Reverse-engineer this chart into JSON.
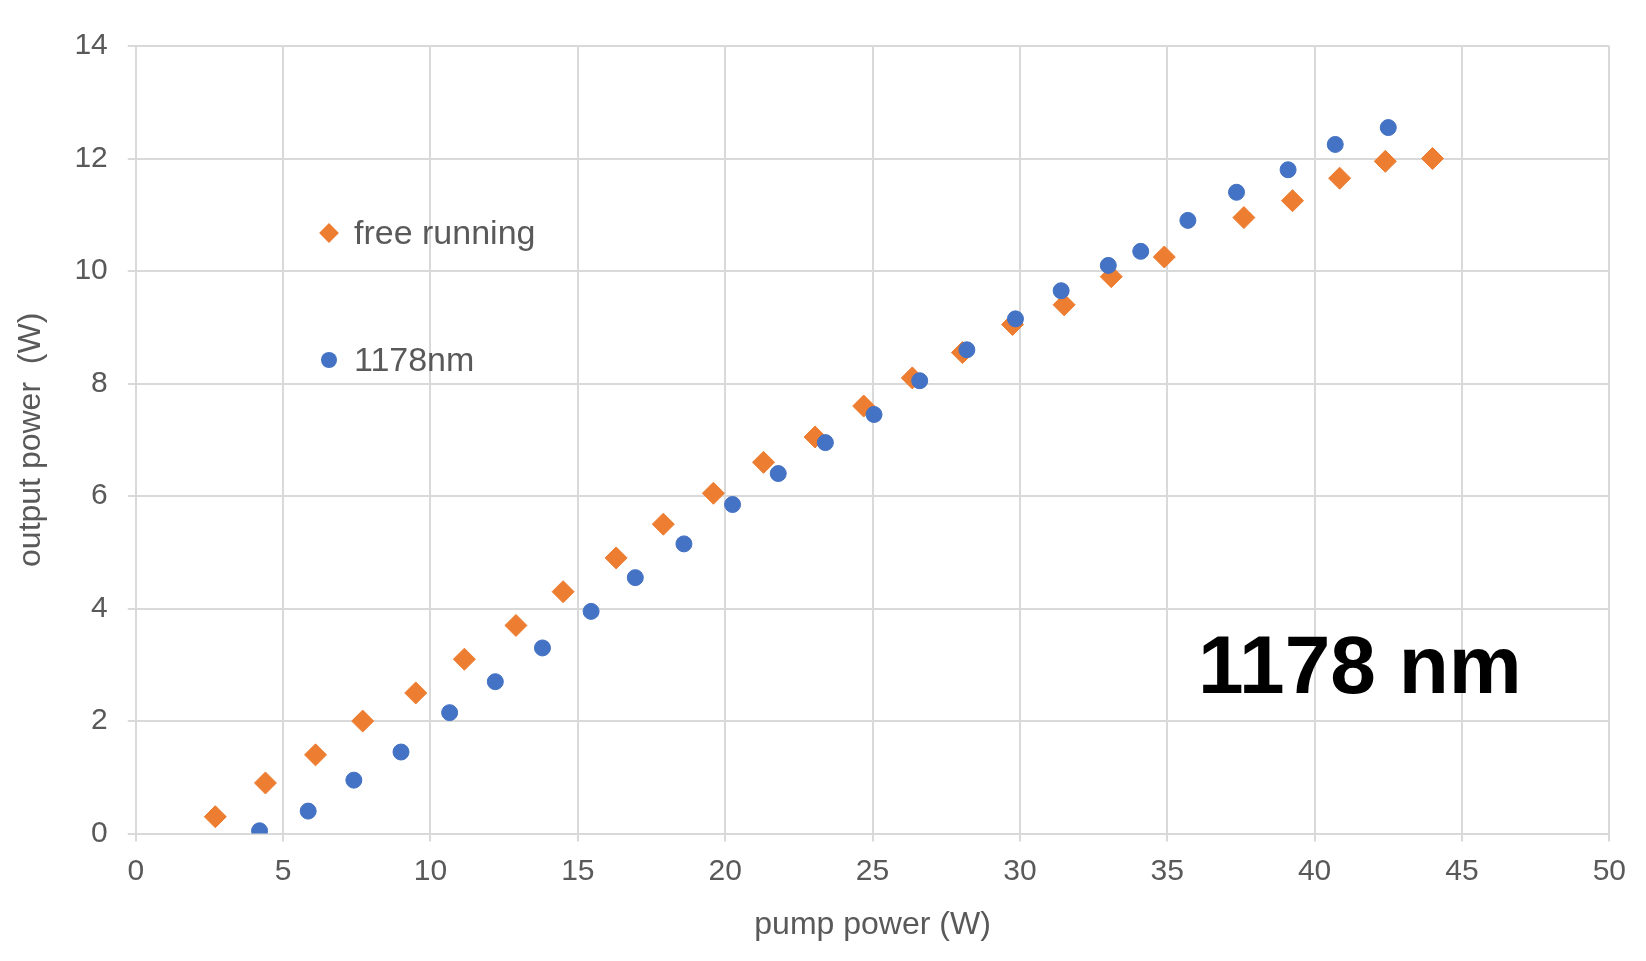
{
  "chart_data": {
    "type": "scatter",
    "xlabel": "pump power (W)",
    "ylabel": "output power  (W)",
    "xlim": [
      0,
      50
    ],
    "xticks": [
      0,
      5,
      10,
      15,
      20,
      25,
      30,
      35,
      40,
      45,
      50
    ],
    "ylim": [
      0,
      14
    ],
    "yticks": [
      0,
      2,
      4,
      6,
      8,
      10,
      12,
      14
    ],
    "grid": true,
    "legend": "top left",
    "annotations": [
      "1178 nm"
    ],
    "series": [
      {
        "name": "free running",
        "color": "#ed7d31",
        "marker": "diamond",
        "x": [
          2.7,
          4.4,
          6.1,
          7.7,
          9.5,
          11.15,
          12.9,
          14.5,
          16.3,
          17.9,
          19.6,
          21.3,
          23.05,
          24.7,
          26.35,
          28.05,
          29.75,
          31.5,
          33.1,
          34.9,
          37.6,
          39.25,
          40.85,
          42.4,
          44.0
        ],
        "values": [
          0.3,
          0.9,
          1.4,
          2.0,
          2.5,
          3.1,
          3.7,
          4.3,
          4.9,
          5.5,
          6.05,
          6.6,
          7.05,
          7.6,
          8.1,
          8.55,
          9.05,
          9.4,
          9.9,
          10.25,
          10.95,
          11.25,
          11.65,
          11.95,
          12.0
        ]
      },
      {
        "name": "1178nm",
        "color": "#4472c4",
        "marker": "circle",
        "x": [
          4.2,
          5.85,
          7.4,
          9.0,
          10.65,
          12.2,
          13.8,
          15.45,
          16.95,
          18.6,
          20.25,
          21.8,
          23.4,
          25.05,
          26.6,
          28.2,
          29.85,
          31.4,
          33.0,
          34.1,
          35.7,
          37.35,
          39.1,
          40.7,
          42.5
        ],
        "values": [
          0.05,
          0.4,
          0.95,
          1.45,
          2.15,
          2.7,
          3.3,
          3.95,
          4.55,
          5.15,
          5.85,
          6.4,
          6.95,
          7.45,
          8.05,
          8.6,
          9.15,
          9.65,
          10.1,
          10.35,
          10.9,
          11.4,
          11.8,
          12.25,
          12.55
        ]
      }
    ]
  }
}
